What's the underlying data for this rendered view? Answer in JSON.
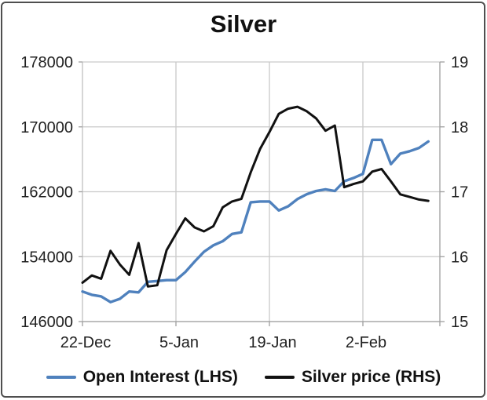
{
  "chart": {
    "title": "Silver"
  },
  "colors": {
    "open_interest_blue": "#4F81BD",
    "silver_price_black": "#111111",
    "gridline": "#c9c9c9",
    "axis_line": "#9e9e9e",
    "label_text": "#212121",
    "frame_border": "#4f4f4f",
    "background": "#ffffff"
  },
  "chart_data": {
    "type": "line",
    "title": "Silver",
    "grid": true,
    "legend_position": "bottom",
    "x_axis": {
      "tick_labels": [
        "22-Dec",
        "5-Jan",
        "19-Jan",
        "2-Feb"
      ],
      "tick_indices": [
        0,
        10,
        20,
        30
      ],
      "n_points": 38
    },
    "left_axis": {
      "min": 146000,
      "max": 178000,
      "ticks": [
        178000,
        170000,
        162000,
        154000,
        146000
      ]
    },
    "right_axis": {
      "min": 15,
      "max": 19,
      "ticks": [
        19,
        18,
        17,
        16,
        15
      ]
    },
    "series": [
      {
        "name": "Open Interest (LHS)",
        "axis": "left",
        "color": "#4F81BD",
        "values": [
          149700,
          149300,
          149100,
          148400,
          148800,
          149700,
          149600,
          150900,
          151000,
          151100,
          151100,
          152100,
          153400,
          154600,
          155400,
          155900,
          156800,
          157000,
          160700,
          160800,
          160800,
          159700,
          160200,
          161100,
          161700,
          162100,
          162300,
          162100,
          163300,
          163700,
          164200,
          168400,
          168400,
          165400,
          166700,
          167000,
          167400,
          168200
        ]
      },
      {
        "name": "Silver price (RHS)",
        "axis": "right",
        "color": "#111111",
        "values": [
          15.6,
          15.71,
          15.66,
          16.09,
          15.88,
          15.72,
          16.21,
          15.54,
          15.56,
          16.1,
          16.35,
          16.59,
          16.45,
          16.39,
          16.47,
          16.76,
          16.85,
          16.89,
          17.3,
          17.66,
          17.92,
          18.2,
          18.28,
          18.31,
          18.24,
          18.13,
          17.94,
          18.02,
          17.07,
          17.12,
          17.16,
          17.31,
          17.35,
          17.16,
          16.96,
          16.92,
          16.88,
          16.86
        ]
      }
    ]
  }
}
